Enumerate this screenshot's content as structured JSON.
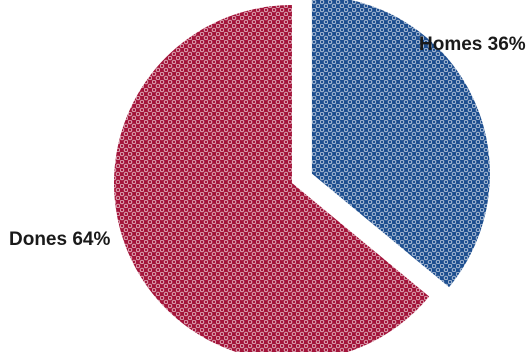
{
  "chart_data": {
    "type": "pie",
    "categories": [
      "Homes",
      "Dones"
    ],
    "values": [
      36,
      64
    ],
    "labels": [
      "Homes 36%",
      "Dones 64%"
    ],
    "exploded": [
      "Homes"
    ],
    "colors": [
      "#1d4e8f",
      "#a3143a"
    ],
    "start": "12 o'clock, clockwise",
    "title": "",
    "legend": "none"
  }
}
